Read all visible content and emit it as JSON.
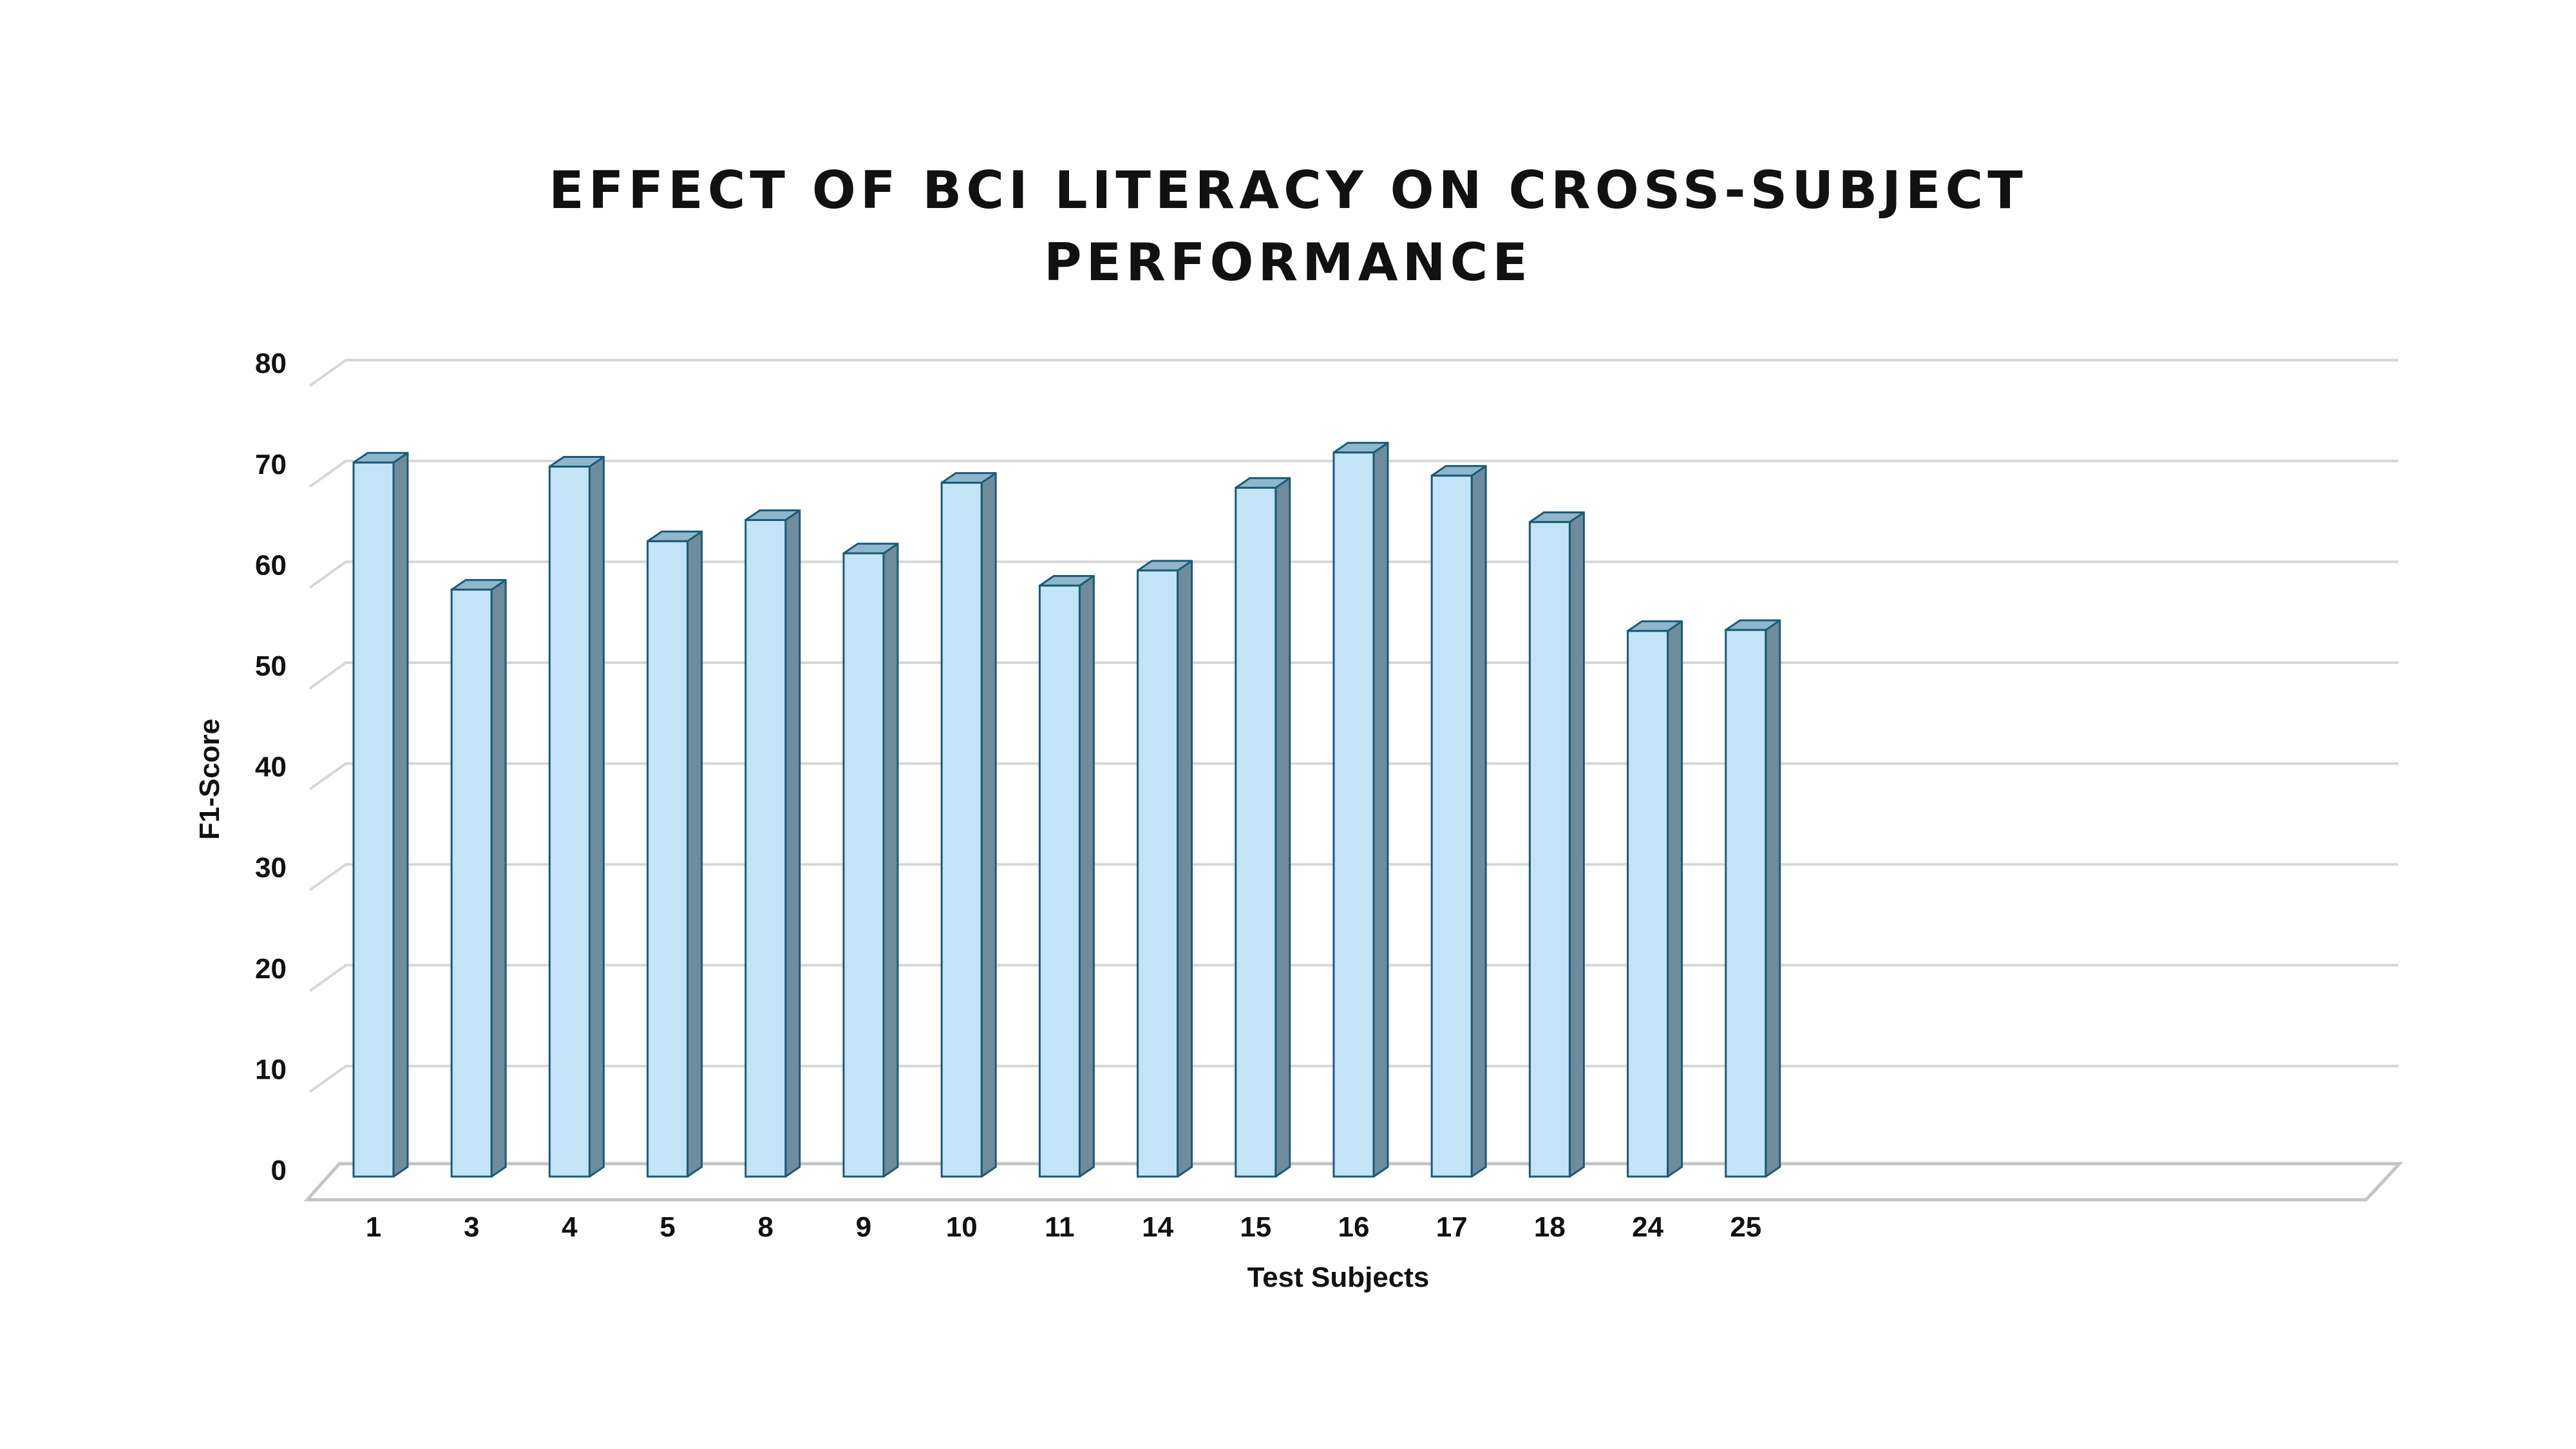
{
  "chart_data": {
    "type": "bar",
    "style": "3d-column",
    "title_lines": [
      "EFFECT OF BCI LITERACY ON CROSS-SUBJECT",
      "PERFORMANCE"
    ],
    "xlabel": "Test Subjects",
    "ylabel": "F1-Score",
    "categories": [
      "1",
      "3",
      "4",
      "5",
      "8",
      "9",
      "10",
      "11",
      "14",
      "15",
      "16",
      "17",
      "18",
      "24",
      "25"
    ],
    "values": [
      70.8,
      58.2,
      70.4,
      63.0,
      65.1,
      61.8,
      68.8,
      58.6,
      60.1,
      68.3,
      71.8,
      69.5,
      64.9,
      54.1,
      54.2
    ],
    "ylim": [
      0,
      80
    ],
    "yticks": [
      0,
      10,
      20,
      30,
      40,
      50,
      60,
      70,
      80
    ],
    "grid": true,
    "legend": "none",
    "colors": {
      "bar_front": "#c3e4f6",
      "bar_top": "#8fb7cc",
      "bar_side": "#6e8c9c",
      "bar_edge": "#1c5a78",
      "grid": "#d6d6d6",
      "floor": "#c4c4c4"
    }
  }
}
